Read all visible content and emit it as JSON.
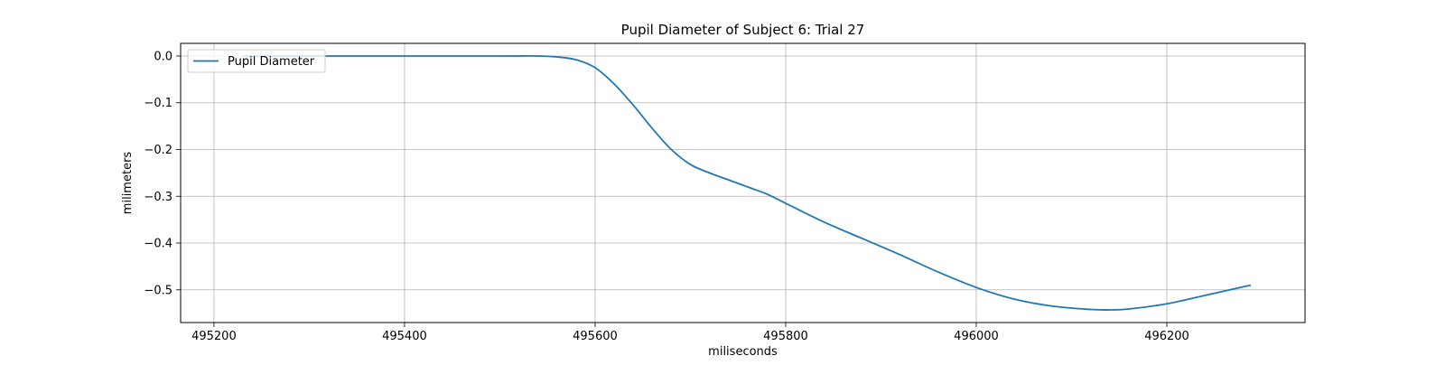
{
  "chart_data": {
    "type": "line",
    "title": "Pupil Diameter of Subject 6: Trial 27",
    "xlabel": "miliseconds",
    "ylabel": "milimeters",
    "xlim": [
      495165,
      495345
    ],
    "ylim": [
      -0.57,
      0.027
    ],
    "xticks": [
      495200,
      495400,
      495600,
      495800,
      496000,
      496200
    ],
    "xtick_labels": [
      "495200",
      "495400",
      "495600",
      "495800",
      "496000",
      "496200"
    ],
    "yticks": [
      0.0,
      -0.1,
      -0.2,
      -0.3,
      -0.4,
      -0.5
    ],
    "ytick_labels": [
      "0.0",
      "−0.1",
      "−0.2",
      "−0.3",
      "−0.4",
      "−0.5"
    ],
    "grid": true,
    "legend": {
      "position": "upper left"
    },
    "series": [
      {
        "name": "Pupil Diameter",
        "color": "#1f77b4",
        "x": [
          495230,
          495300,
          495400,
          495500,
          495540,
          495560,
          495580,
          495600,
          495620,
          495640,
          495660,
          495680,
          495700,
          495720,
          495740,
          495760,
          495780,
          495800,
          495840,
          495880,
          495920,
          495960,
          496000,
          496040,
          496080,
          496120,
          496140,
          496160,
          496200,
          496240,
          496288
        ],
        "y": [
          0.0,
          0.0,
          0.0,
          0.0,
          0.0,
          -0.002,
          -0.008,
          -0.025,
          -0.06,
          -0.105,
          -0.155,
          -0.2,
          -0.232,
          -0.25,
          -0.265,
          -0.28,
          -0.295,
          -0.315,
          -0.355,
          -0.39,
          -0.425,
          -0.462,
          -0.495,
          -0.52,
          -0.535,
          -0.542,
          -0.543,
          -0.541,
          -0.53,
          -0.512,
          -0.49
        ]
      }
    ]
  }
}
